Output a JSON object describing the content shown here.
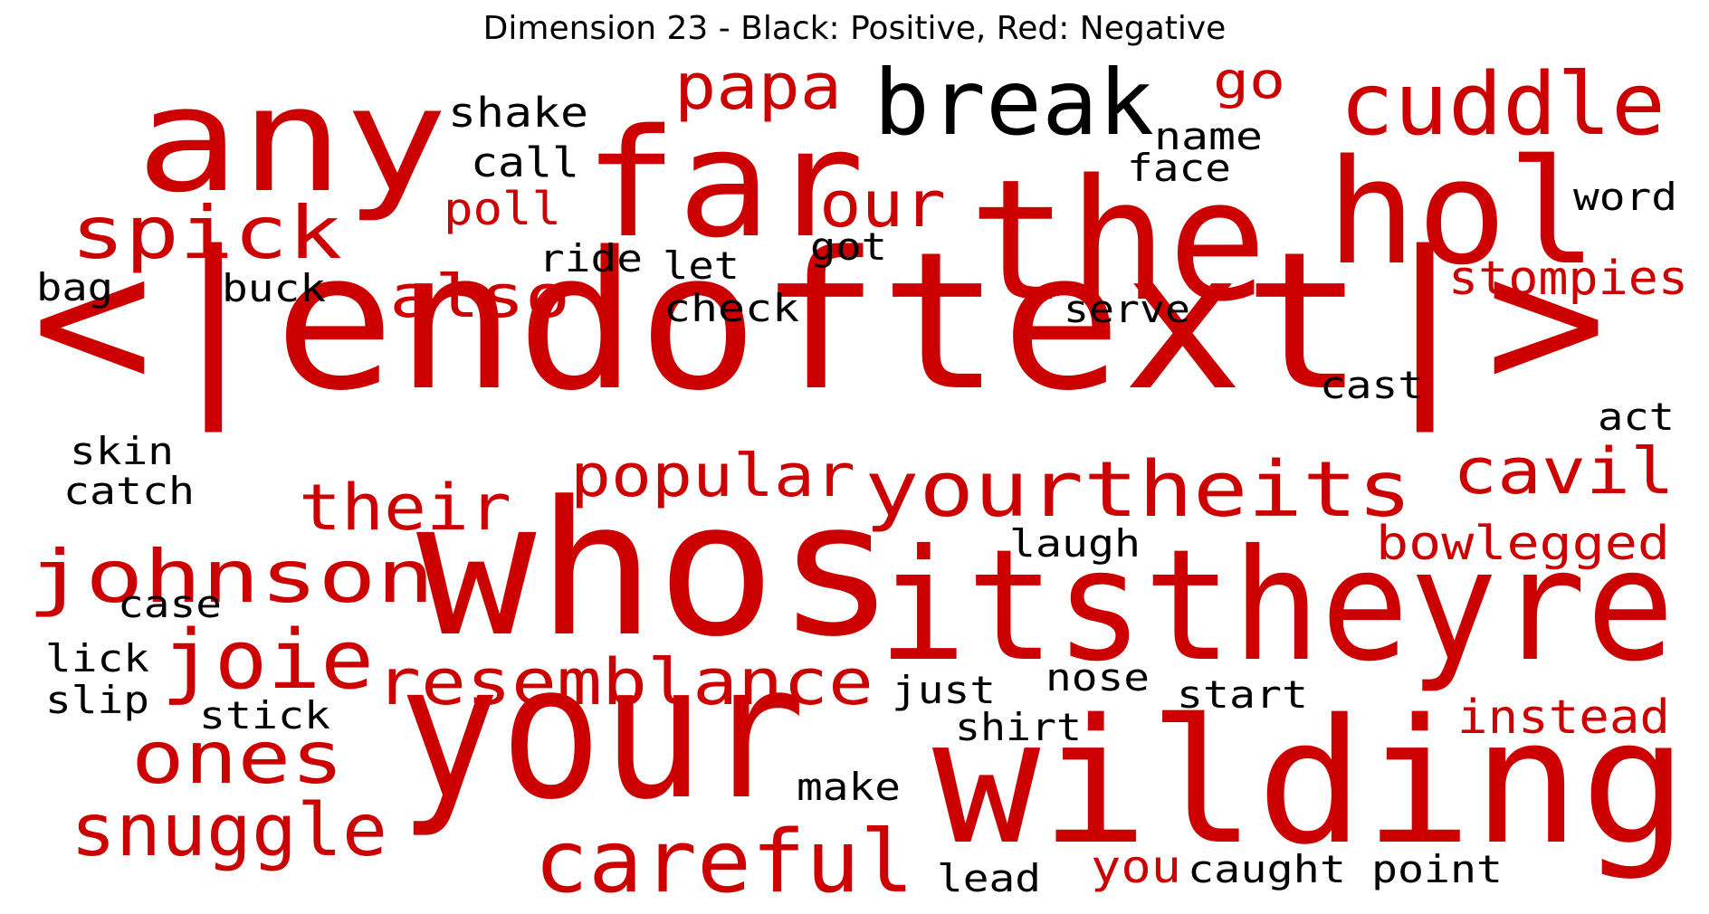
{
  "title": "Dimension 23 - Black: Positive, Red: Negative",
  "colors": {
    "positive": "#000000",
    "negative": "#cc0000"
  },
  "words": [
    {
      "text": "<|endoftext|>",
      "sign": "negative"
    },
    {
      "text": "whos",
      "sign": "negative"
    },
    {
      "text": "itstheyre",
      "sign": "negative"
    },
    {
      "text": "your",
      "sign": "negative"
    },
    {
      "text": "wilding",
      "sign": "negative"
    },
    {
      "text": "the",
      "sign": "negative"
    },
    {
      "text": "any",
      "sign": "negative"
    },
    {
      "text": "far",
      "sign": "negative"
    },
    {
      "text": "hol",
      "sign": "negative"
    },
    {
      "text": "break",
      "sign": "positive"
    },
    {
      "text": "cuddle",
      "sign": "negative"
    },
    {
      "text": "yourtheits",
      "sign": "negative"
    },
    {
      "text": "spick",
      "sign": "negative"
    },
    {
      "text": "johnson",
      "sign": "negative"
    },
    {
      "text": "joie",
      "sign": "negative"
    },
    {
      "text": "careful",
      "sign": "negative"
    },
    {
      "text": "resemblance",
      "sign": "negative"
    },
    {
      "text": "snuggle",
      "sign": "negative"
    },
    {
      "text": "ones",
      "sign": "negative"
    },
    {
      "text": "papa",
      "sign": "negative"
    },
    {
      "text": "popular",
      "sign": "negative"
    },
    {
      "text": "their",
      "sign": "negative"
    },
    {
      "text": "also",
      "sign": "negative"
    },
    {
      "text": "our",
      "sign": "negative"
    },
    {
      "text": "cavil",
      "sign": "negative"
    },
    {
      "text": "bowlegged",
      "sign": "negative"
    },
    {
      "text": "stompies",
      "sign": "negative"
    },
    {
      "text": "instead",
      "sign": "negative"
    },
    {
      "text": "poll",
      "sign": "negative"
    },
    {
      "text": "go",
      "sign": "negative"
    },
    {
      "text": "you",
      "sign": "negative"
    },
    {
      "text": "shake",
      "sign": "positive"
    },
    {
      "text": "call",
      "sign": "positive"
    },
    {
      "text": "name",
      "sign": "positive"
    },
    {
      "text": "face",
      "sign": "positive"
    },
    {
      "text": "word",
      "sign": "positive"
    },
    {
      "text": "ride",
      "sign": "positive"
    },
    {
      "text": "let",
      "sign": "positive"
    },
    {
      "text": "got",
      "sign": "positive"
    },
    {
      "text": "bag",
      "sign": "positive"
    },
    {
      "text": "buck",
      "sign": "positive"
    },
    {
      "text": "check",
      "sign": "positive"
    },
    {
      "text": "serve",
      "sign": "positive"
    },
    {
      "text": "cast",
      "sign": "positive"
    },
    {
      "text": "act",
      "sign": "positive"
    },
    {
      "text": "skin",
      "sign": "positive"
    },
    {
      "text": "catch",
      "sign": "positive"
    },
    {
      "text": "laugh",
      "sign": "positive"
    },
    {
      "text": "case",
      "sign": "positive"
    },
    {
      "text": "lick",
      "sign": "positive"
    },
    {
      "text": "slip",
      "sign": "positive"
    },
    {
      "text": "stick",
      "sign": "positive"
    },
    {
      "text": "just",
      "sign": "positive"
    },
    {
      "text": "nose",
      "sign": "positive"
    },
    {
      "text": "start",
      "sign": "positive"
    },
    {
      "text": "shirt",
      "sign": "positive"
    },
    {
      "text": "make",
      "sign": "positive"
    },
    {
      "text": "lead",
      "sign": "positive"
    },
    {
      "text": "caught",
      "sign": "positive"
    },
    {
      "text": "point",
      "sign": "positive"
    }
  ]
}
